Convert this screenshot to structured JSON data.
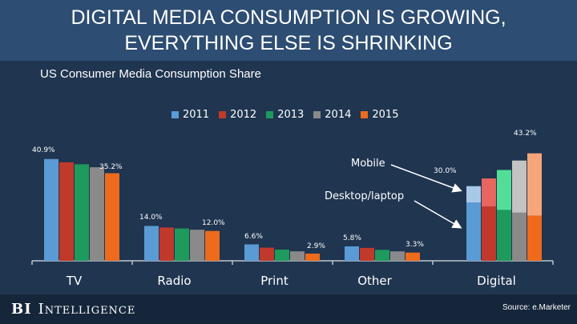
{
  "title_line1": "DIGITAL MEDIA CONSUMPTION IS GROWING,",
  "title_line2": "EVERYTHING ELSE IS SHRINKING",
  "subtitle": "US Consumer Media Consumption Share",
  "brand_bi": "BI",
  "brand_intel": "Intelligence",
  "source": "Source: e.Marketer",
  "colors": {
    "s2011": "#5b9bd5",
    "s2012": "#c0392b",
    "s2013": "#1e9a5c",
    "s2014": "#8a8a8a",
    "s2015": "#ee6a1c",
    "s2011_light": "#a8c8e8",
    "s2012_light": "#e8665f",
    "s2013_light": "#52de97",
    "s2014_light": "#c3c3c3",
    "s2015_light": "#f6a67a"
  },
  "chart_data": {
    "type": "bar",
    "title": "US Consumer Media Consumption Share",
    "categories": [
      "TV",
      "Radio",
      "Print",
      "Other",
      "Digital"
    ],
    "series": [
      {
        "name": "2011",
        "values": [
          40.9,
          14.0,
          6.6,
          5.8,
          30.0
        ]
      },
      {
        "name": "2012",
        "values": [
          39.6,
          13.4,
          5.3,
          5.2,
          33.1
        ]
      },
      {
        "name": "2013",
        "values": [
          38.8,
          13.0,
          4.5,
          4.4,
          36.5
        ]
      },
      {
        "name": "2014",
        "values": [
          37.6,
          12.5,
          3.8,
          3.8,
          40.3
        ]
      },
      {
        "name": "2015",
        "values": [
          35.2,
          12.0,
          2.9,
          3.3,
          43.2
        ]
      }
    ],
    "digital_split": {
      "mobile_share_of_digital_top": [
        0.22,
        0.34,
        0.44,
        0.52,
        0.58
      ]
    },
    "data_labels": [
      {
        "text": "40.9%",
        "category": "TV",
        "series": "2011"
      },
      {
        "text": "35.2%",
        "category": "TV",
        "series": "2015"
      },
      {
        "text": "14.0%",
        "category": "Radio",
        "series": "2011"
      },
      {
        "text": "12.0%",
        "category": "Radio",
        "series": "2015"
      },
      {
        "text": "6.6%",
        "category": "Print",
        "series": "2011"
      },
      {
        "text": "2.9%",
        "category": "Print",
        "series": "2015"
      },
      {
        "text": "5.8%",
        "category": "Other",
        "series": "2011"
      },
      {
        "text": "3.3%",
        "category": "Other",
        "series": "2015"
      },
      {
        "text": "30.0%",
        "category": "Digital",
        "series": "2011"
      },
      {
        "text": "43.2%",
        "category": "Digital",
        "series": "2015"
      }
    ],
    "annotations": {
      "mobile": "Mobile",
      "desktop": "Desktop/laptop"
    },
    "ylim": [
      0,
      50
    ],
    "legend": "top-center"
  }
}
